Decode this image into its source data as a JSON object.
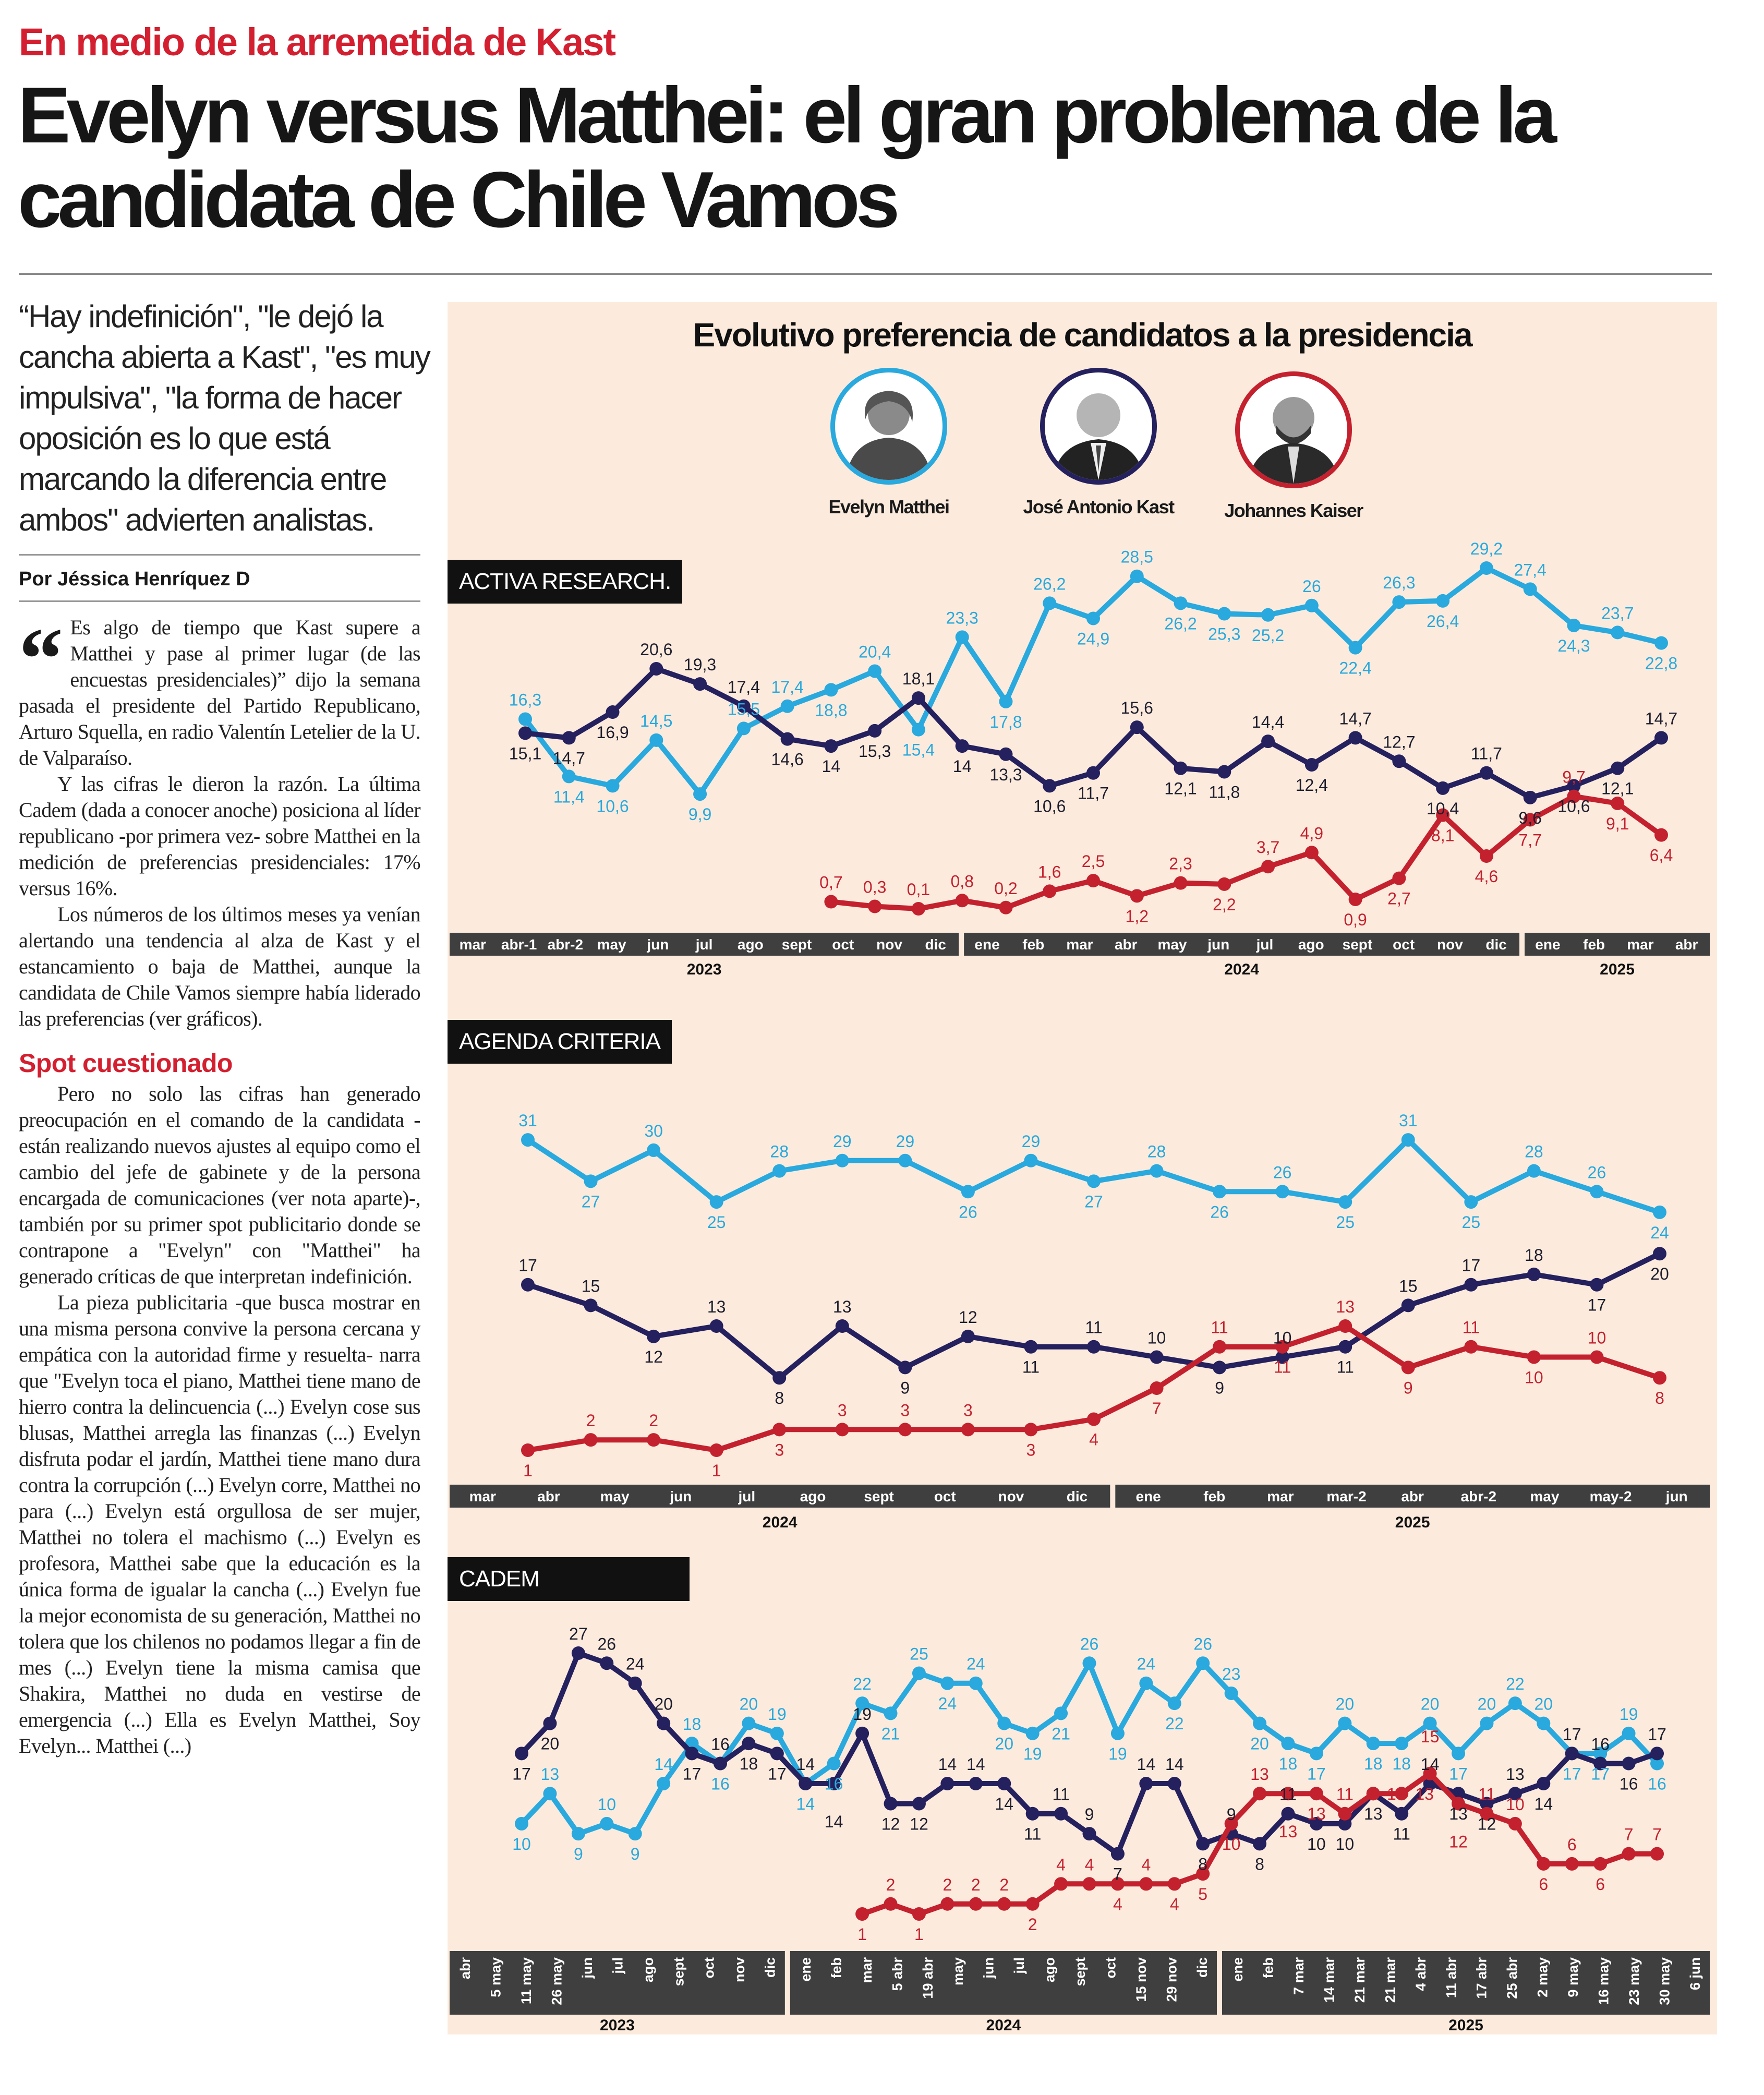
{
  "kicker": "En medio de la arremetida de Kast",
  "headline": "Evelyn versus Matthei: el gran problema de la candidata de Chile Vamos",
  "lead": "“Hay indefinición\", \"le dejó la cancha abierta a Kast\", \"es muy impulsiva\", \"la forma de hacer oposición es lo que está marcando la diferencia entre ambos\" advierten analistas.",
  "byline": "Por Jéssica Henríquez D",
  "article": {
    "quote_mark": "“",
    "paragraphs": [
      "Es algo de tiempo que Kast supere a Matthei y pase al primer lugar (de las encuestas presidenciales)” dijo la semana pasada el presidente del Partido Republicano, Arturo Squella, en radio Valentín Letelier de la U. de Valparaíso.",
      "Y las cifras le dieron la razón. La última Cadem (dada a conocer anoche) posiciona al líder republicano -por primera vez- sobre Matthei en la medición de preferencias presidenciales: 17% versus 16%.",
      "Los números de los últimos meses ya venían alertando una tendencia al alza de Kast y el estancamiento o baja de Matthei, aunque la candidata de Chile Vamos siempre había liderado las preferencias (ver gráficos)."
    ],
    "subhead": "Spot cuestionado",
    "paragraphs2": [
      "Pero no solo las cifras han generado preocupación en el comando de la candidata -están realizando nuevos ajustes al equipo como el cambio del jefe de gabinete y de la persona encargada de comunicaciones (ver nota aparte)-, también por su primer spot publicitario donde se contrapone a \"Evelyn\" con \"Matthei\" ha generado críticas de que interpretan indefinición.",
      "La pieza publicitaria -que busca mostrar en una misma persona convive la persona cercana y empática con la autoridad firme y resuelta- narra que \"Evelyn toca el piano, Matthei tiene mano de hierro contra la delincuencia (...) Evelyn cose sus blusas, Matthei arregla las finanzas (...) Evelyn disfruta podar el jardín, Matthei tiene mano dura contra la corrupción (...) Evelyn corre, Matthei no para (...) Evelyn está orgullosa de ser mujer, Matthei no tolera el machismo (...) Evelyn es profesora, Matthei sabe que la educación es la única forma de igualar la cancha (...) Evelyn fue la mejor economista de su generación, Matthei no tolera que los chilenos no podamos llegar a fin de mes (...) Evelyn tiene la misma camisa que Shakira, Matthei no duda en vestirse de emergencia (...) Ella es Evelyn Matthei, Soy Evelyn... Matthei (...)"
    ]
  },
  "infographic": {
    "title": "Evolutivo preferencia de candidatos a la presidencia",
    "candidates": [
      {
        "name": "Evelyn Matthei",
        "color": "#29a9dd"
      },
      {
        "name": "José Antonio Kast",
        "color": "#25205e"
      },
      {
        "name": "Johannes Kaiser",
        "color": "#c4212f"
      }
    ]
  },
  "chart_data": [
    {
      "type": "line",
      "source": "ACTIVA RESEARCH.",
      "axis_groups": [
        {
          "year": "2023",
          "labels": [
            "mar",
            "abr-1",
            "abr-2",
            "may",
            "jun",
            "jul",
            "ago",
            "sept",
            "oct",
            "nov",
            "dic"
          ]
        },
        {
          "year": "2024",
          "labels": [
            "ene",
            "feb",
            "mar",
            "abr",
            "may",
            "jun",
            "jul",
            "ago",
            "sept",
            "oct",
            "nov",
            "dic"
          ]
        },
        {
          "year": "2025",
          "labels": [
            "ene",
            "feb",
            "mar",
            "abr"
          ]
        }
      ],
      "series": [
        {
          "name": "Evelyn Matthei",
          "color": "#29a9dd",
          "values": [
            16.3,
            11.4,
            10.6,
            14.5,
            9.9,
            15.5,
            17.4,
            18.8,
            20.4,
            15.4,
            23.3,
            17.8,
            26.2,
            24.9,
            28.5,
            26.2,
            25.3,
            25.2,
            26,
            22.4,
            26.3,
            26.4,
            29.2,
            27.4,
            24.3,
            23.7,
            22.8
          ]
        },
        {
          "name": "José Antonio Kast",
          "color": "#25205e",
          "values": [
            15.1,
            14.7,
            16.9,
            20.6,
            19.3,
            17.4,
            14.6,
            14,
            15.3,
            18.1,
            14,
            13.3,
            10.6,
            11.7,
            15.6,
            12.1,
            11.8,
            14.4,
            12.4,
            14.7,
            12.7,
            10.4,
            11.7,
            9.6,
            10.6,
            12.1,
            14.7
          ]
        },
        {
          "name": "Johannes Kaiser",
          "color": "#c4212f",
          "values": [
            null,
            null,
            null,
            null,
            null,
            null,
            null,
            0.7,
            0.3,
            0.1,
            0.8,
            0.2,
            1.6,
            2.5,
            1.2,
            2.3,
            2.2,
            3.7,
            4.9,
            0.9,
            2.7,
            8.1,
            4.6,
            7.7,
            9.7,
            9.1,
            6.4
          ]
        }
      ]
    },
    {
      "type": "line",
      "source": "AGENDA CRITERIA",
      "axis_groups": [
        {
          "year": "2024",
          "labels": [
            "mar",
            "abr",
            "may",
            "jun",
            "jul",
            "ago",
            "sept",
            "oct",
            "nov",
            "dic"
          ]
        },
        {
          "year": "2025",
          "labels": [
            "ene",
            "feb",
            "mar",
            "mar-2",
            "abr",
            "abr-2",
            "may",
            "may-2",
            "jun"
          ]
        }
      ],
      "series": [
        {
          "name": "Evelyn Matthei",
          "color": "#29a9dd",
          "values": [
            31,
            27,
            30,
            25,
            28,
            29,
            29,
            26,
            29,
            27,
            28,
            26,
            26,
            25,
            31,
            25,
            28,
            26,
            24
          ]
        },
        {
          "name": "José Antonio Kast",
          "color": "#25205e",
          "values": [
            17,
            15,
            12,
            13,
            8,
            13,
            9,
            12,
            11,
            11,
            10,
            9,
            10,
            11,
            15,
            17,
            18,
            17,
            20
          ]
        },
        {
          "name": "Johannes Kaiser",
          "color": "#c4212f",
          "values": [
            1,
            2,
            2,
            1,
            3,
            3,
            3,
            3,
            3,
            4,
            7,
            11,
            11,
            13,
            9,
            11,
            10,
            10,
            8
          ]
        }
      ]
    },
    {
      "type": "line",
      "source": "CADEM",
      "axis_groups": [
        {
          "year": "2023",
          "labels": [
            "abr",
            "5 may",
            "11 may",
            "26 may",
            "jun",
            "jul",
            "ago",
            "sept",
            "oct",
            "nov",
            "dic"
          ]
        },
        {
          "year": "2024",
          "labels": [
            "ene",
            "feb",
            "mar",
            "5 abr",
            "19 abr",
            "may",
            "jun",
            "jul",
            "ago",
            "sept",
            "oct",
            "15 nov",
            "29 nov",
            "dic"
          ]
        },
        {
          "year": "2025",
          "labels": [
            "ene",
            "feb",
            "7 mar",
            "14 mar",
            "21 mar",
            "21 mar",
            "4 abr",
            "11 abr",
            "17 abr",
            "25 abr",
            "2 may",
            "9 may",
            "16 may",
            "23 may",
            "30 may",
            "6 jun"
          ]
        }
      ],
      "series": [
        {
          "name": "Evelyn Matthei",
          "color": "#29a9dd",
          "values": [
            10,
            13,
            9,
            10,
            9,
            14,
            18,
            16,
            20,
            19,
            14,
            16,
            22,
            21,
            25,
            24,
            24,
            20,
            19,
            21,
            26,
            19,
            24,
            22,
            26,
            23,
            20,
            18,
            17,
            20,
            18,
            18,
            20,
            17,
            20,
            22,
            20,
            17,
            17,
            19,
            16
          ]
        },
        {
          "name": "José Antonio Kast",
          "color": "#25205e",
          "values": [
            17,
            20,
            27,
            26,
            24,
            20,
            17,
            16,
            18,
            17,
            14,
            14,
            19,
            12,
            12,
            14,
            14,
            14,
            11,
            11,
            9,
            7,
            14,
            14,
            8,
            9,
            8,
            11,
            10,
            10,
            13,
            11,
            14,
            13,
            12,
            13,
            14,
            17,
            16,
            16,
            17
          ]
        },
        {
          "name": "Johannes Kaiser",
          "color": "#c4212f",
          "values": [
            null,
            null,
            null,
            null,
            null,
            null,
            null,
            null,
            null,
            null,
            null,
            null,
            1,
            2,
            1,
            2,
            2,
            2,
            2,
            4,
            4,
            4,
            4,
            4,
            5,
            10,
            13,
            13,
            13,
            11,
            13,
            13,
            15,
            12,
            11,
            10,
            6,
            6,
            6,
            7,
            7
          ]
        }
      ]
    }
  ]
}
